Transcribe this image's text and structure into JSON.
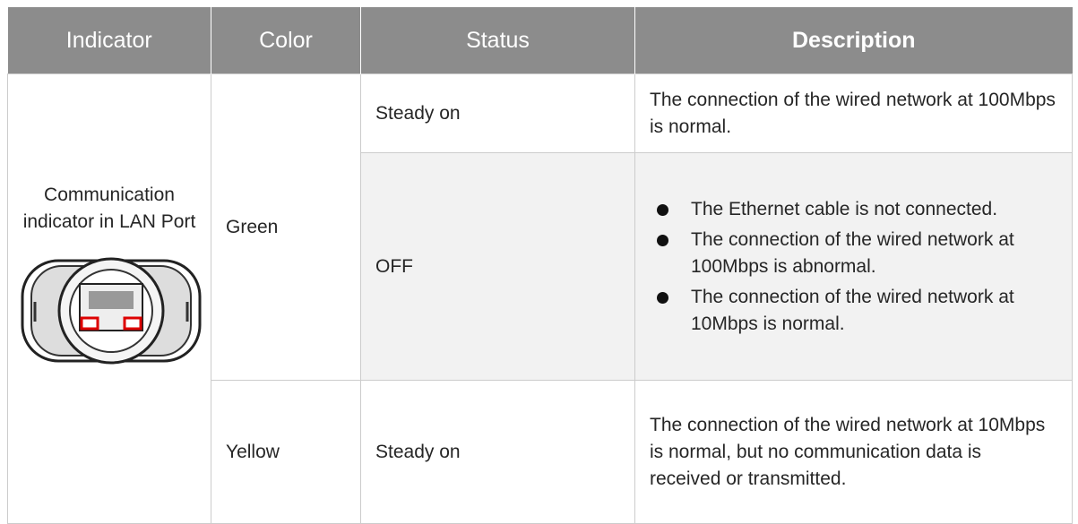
{
  "table": {
    "header": [
      "Indicator",
      "Color",
      "Status",
      "Description"
    ],
    "rows": [
      {
        "indicator": "Communication indicator in LAN Port",
        "color": "Green",
        "status": "Steady on",
        "description": "The connection of the wired network at 100Mbps is normal."
      },
      {
        "status": "OFF",
        "bullets": [
          "The Ethernet cable is not connected.",
          "The connection of the wired network at 100Mbps is abnormal.",
          "The connection of the wired network at 10Mbps is normal."
        ]
      },
      {
        "color": "Yellow",
        "status": "Steady on",
        "description": "The connection of the wired network at 10Mbps is normal, but no communication data is received or transmitted."
      }
    ]
  }
}
